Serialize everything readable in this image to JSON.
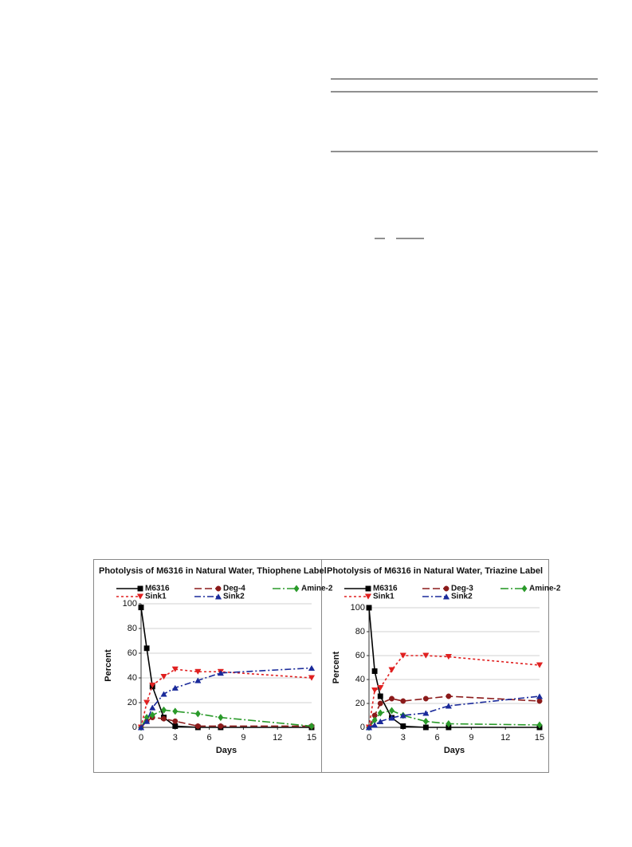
{
  "chart_data": [
    {
      "type": "line",
      "title": "Photolysis of M6316 in Natural Water, Thiophene Label",
      "x_label": "Days",
      "y_label": "Percent",
      "x": [
        0,
        0.5,
        1,
        2,
        3,
        5,
        7,
        15
      ],
      "xlim": [
        0,
        15
      ],
      "xticks": [
        0,
        3,
        6,
        9,
        12,
        15
      ],
      "ylim": [
        0,
        100
      ],
      "yticks": [
        0,
        20,
        40,
        60,
        80,
        100
      ],
      "grid": true,
      "series": [
        {
          "name": "M6316",
          "color": "#000000",
          "marker": "square",
          "values": [
            97,
            64,
            33,
            8,
            1,
            0,
            0,
            0
          ]
        },
        {
          "name": "Deg-4",
          "color": "#8b1a1a",
          "marker": "circle",
          "values": [
            0,
            5,
            8,
            7,
            5,
            1,
            1,
            1
          ]
        },
        {
          "name": "Amine-2",
          "color": "#2a9a2a",
          "marker": "diamond",
          "values": [
            0,
            8,
            10,
            14,
            13,
            11,
            8,
            1
          ]
        },
        {
          "name": "Sink1",
          "color": "#e02020",
          "marker": "triangle-down",
          "values": [
            0,
            20,
            34,
            41,
            47,
            45,
            45,
            40
          ]
        },
        {
          "name": "Sink2",
          "color": "#1a2a9a",
          "marker": "triangle-up",
          "values": [
            0,
            5,
            16,
            27,
            32,
            38,
            44,
            48
          ]
        }
      ]
    },
    {
      "type": "line",
      "title": "Photolysis of M6316 in Natural Water, Triazine Label",
      "x_label": "Days",
      "y_label": "Percent",
      "x": [
        0,
        0.5,
        1,
        2,
        3,
        5,
        7,
        15
      ],
      "xlim": [
        0,
        15
      ],
      "xticks": [
        0,
        3,
        6,
        9,
        12,
        15
      ],
      "ylim": [
        0,
        100
      ],
      "yticks": [
        0,
        20,
        40,
        60,
        80,
        100
      ],
      "grid": true,
      "series": [
        {
          "name": "M6316",
          "color": "#000000",
          "marker": "square",
          "values": [
            100,
            47,
            26,
            8,
            1,
            0,
            0,
            0
          ]
        },
        {
          "name": "Deg-3",
          "color": "#8b1a1a",
          "marker": "circle",
          "values": [
            0,
            10,
            20,
            24,
            22,
            24,
            26,
            22
          ]
        },
        {
          "name": "Amine-2",
          "color": "#2a9a2a",
          "marker": "diamond",
          "values": [
            0,
            6,
            12,
            14,
            10,
            5,
            3,
            2
          ]
        },
        {
          "name": "Sink1",
          "color": "#e02020",
          "marker": "triangle-down",
          "values": [
            0,
            31,
            33,
            48,
            60,
            60,
            59,
            52
          ]
        },
        {
          "name": "Sink2",
          "color": "#1a2a9a",
          "marker": "triangle-up",
          "values": [
            0,
            2,
            5,
            8,
            10,
            12,
            18,
            26
          ]
        }
      ]
    }
  ]
}
